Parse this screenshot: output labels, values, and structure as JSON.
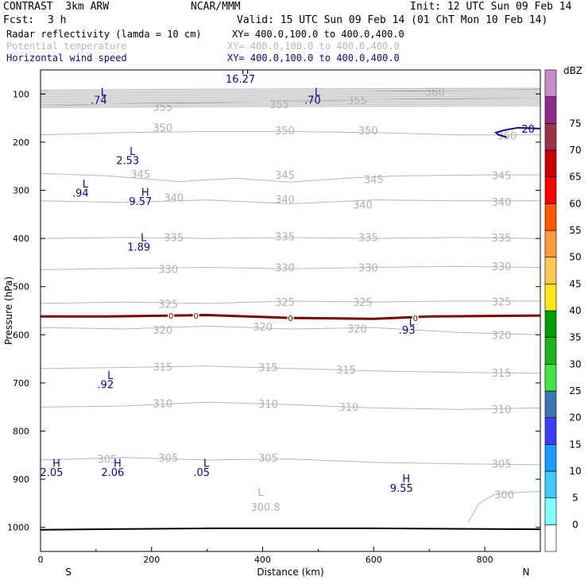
{
  "header": {
    "model": "CONTRAST  3km ARW",
    "org": "NCAR/MMM",
    "init": "Init: 12 UTC Sun 09 Feb 14",
    "fcst_label": "Fcst:",
    "fcst_value": "3 h",
    "valid": "Valid: 15 UTC Sun 09 Feb 14 (01 ChT Mon 10 Feb 14)",
    "fields": [
      {
        "name": "Radar reflectivity (lamda = 10 cm)",
        "xy": "XY= 400.0,100.0 to 400.0,400.0",
        "color": "#000000"
      },
      {
        "name": "Potential temperature",
        "xy": "XY= 400.0,100.0 to 400.0,400.0",
        "color": "#b4b4b4"
      },
      {
        "name": "Horizontal wind speed",
        "xy": "XY= 400.0,100.0 to 400.0,400.0",
        "color": "#0a0a8c"
      }
    ]
  },
  "chart_data": {
    "type": "cross-section contour",
    "title": "Radar reflectivity / Potential temperature / Horizontal wind speed",
    "xlabel": "Distance (km)",
    "ylabel": "Pressure (hPa)",
    "x_range": [
      0,
      900
    ],
    "y_range": [
      1050,
      50
    ],
    "x_ticks": [
      0,
      200,
      400,
      600,
      800
    ],
    "y_ticks": [
      100,
      200,
      300,
      400,
      500,
      600,
      700,
      800,
      900,
      1000
    ],
    "x_end_labels": {
      "left": "S",
      "right": "N"
    },
    "colorbar": {
      "unit": "dBZ",
      "levels": [
        0,
        5,
        10,
        15,
        20,
        25,
        30,
        35,
        40,
        45,
        50,
        55,
        60,
        65,
        70,
        75
      ],
      "colors": [
        "#ffffff",
        "#80ffff",
        "#40c8ff",
        "#1a9bff",
        "#3c3cff",
        "#3c78b4",
        "#40e640",
        "#1eb41e",
        "#00a000",
        "#ffe614",
        "#ffc850",
        "#ff9b3c",
        "#ff5a00",
        "#ff0000",
        "#c80000",
        "#a03246",
        "#8c2d8c",
        "#c88cc8"
      ]
    },
    "theta_contours": [
      {
        "level": 355,
        "pts": [
          [
            0,
            125
          ],
          [
            150,
            120
          ],
          [
            300,
            118
          ],
          [
            450,
            115
          ],
          [
            600,
            112
          ],
          [
            700,
            110
          ],
          [
            900,
            108
          ]
        ],
        "labels": [
          [
            220,
            127
          ],
          [
            430,
            121
          ],
          [
            570,
            113
          ]
        ]
      },
      {
        "level": 360,
        "pts": [
          [
            600,
            95
          ],
          [
            700,
            93
          ],
          [
            900,
            90
          ]
        ],
        "labels": [
          [
            710,
            95
          ]
        ]
      },
      {
        "level": 350,
        "pts": [
          [
            0,
            185
          ],
          [
            150,
            180
          ],
          [
            300,
            178
          ],
          [
            450,
            178
          ],
          [
            600,
            180
          ],
          [
            750,
            185
          ],
          [
            900,
            185
          ]
        ],
        "labels": [
          [
            220,
            170
          ],
          [
            440,
            175
          ],
          [
            590,
            175
          ],
          [
            840,
            186
          ]
        ]
      },
      {
        "level": 345,
        "pts": [
          [
            0,
            265
          ],
          [
            120,
            270
          ],
          [
            250,
            282
          ],
          [
            350,
            275
          ],
          [
            450,
            283
          ],
          [
            550,
            275
          ],
          [
            650,
            270
          ],
          [
            800,
            268
          ],
          [
            900,
            268
          ]
        ],
        "labels": [
          [
            180,
            266
          ],
          [
            440,
            268
          ],
          [
            600,
            277
          ],
          [
            830,
            269
          ]
        ]
      },
      {
        "level": 340,
        "pts": [
          [
            0,
            322
          ],
          [
            150,
            325
          ],
          [
            300,
            320
          ],
          [
            450,
            328
          ],
          [
            600,
            320
          ],
          [
            750,
            322
          ],
          [
            900,
            322
          ]
        ],
        "labels": [
          [
            240,
            315
          ],
          [
            440,
            318
          ],
          [
            580,
            330
          ],
          [
            830,
            324
          ]
        ]
      },
      {
        "level": 335,
        "pts": [
          [
            0,
            400
          ],
          [
            150,
            398
          ],
          [
            300,
            400
          ],
          [
            450,
            398
          ],
          [
            600,
            400
          ],
          [
            750,
            398
          ],
          [
            900,
            400
          ]
        ],
        "labels": [
          [
            240,
            397
          ],
          [
            440,
            396
          ],
          [
            590,
            397
          ],
          [
            830,
            398
          ]
        ]
      },
      {
        "level": 330,
        "pts": [
          [
            0,
            465
          ],
          [
            150,
            462
          ],
          [
            300,
            460
          ],
          [
            450,
            463
          ],
          [
            600,
            460
          ],
          [
            750,
            458
          ],
          [
            900,
            460
          ]
        ],
        "labels": [
          [
            230,
            463
          ],
          [
            440,
            460
          ],
          [
            590,
            460
          ],
          [
            830,
            458
          ]
        ]
      },
      {
        "level": 325,
        "pts": [
          [
            0,
            535
          ],
          [
            150,
            532
          ],
          [
            300,
            535
          ],
          [
            450,
            530
          ],
          [
            600,
            532
          ],
          [
            750,
            530
          ],
          [
            900,
            530
          ]
        ],
        "labels": [
          [
            230,
            536
          ],
          [
            440,
            532
          ],
          [
            580,
            532
          ],
          [
            830,
            531
          ]
        ]
      },
      {
        "level": 320,
        "pts": [
          [
            0,
            585
          ],
          [
            150,
            588
          ],
          [
            300,
            582
          ],
          [
            450,
            588
          ],
          [
            600,
            585
          ],
          [
            750,
            595
          ],
          [
            900,
            600
          ]
        ],
        "labels": [
          [
            220,
            590
          ],
          [
            400,
            583
          ],
          [
            570,
            587
          ],
          [
            830,
            600
          ]
        ]
      },
      {
        "level": 315,
        "pts": [
          [
            0,
            670
          ],
          [
            150,
            668
          ],
          [
            300,
            665
          ],
          [
            450,
            670
          ],
          [
            600,
            675
          ],
          [
            750,
            678
          ],
          [
            900,
            680
          ]
        ],
        "labels": [
          [
            220,
            666
          ],
          [
            410,
            667
          ],
          [
            550,
            672
          ],
          [
            830,
            679
          ]
        ]
      },
      {
        "level": 310,
        "pts": [
          [
            0,
            750
          ],
          [
            150,
            748
          ],
          [
            300,
            740
          ],
          [
            450,
            745
          ],
          [
            600,
            752
          ],
          [
            750,
            755
          ],
          [
            900,
            752
          ]
        ],
        "labels": [
          [
            220,
            742
          ],
          [
            410,
            743
          ],
          [
            555,
            750
          ],
          [
            830,
            755
          ]
        ]
      },
      {
        "level": 305,
        "pts": [
          [
            0,
            860
          ],
          [
            150,
            855
          ],
          [
            300,
            860
          ],
          [
            450,
            858
          ],
          [
            600,
            865
          ],
          [
            750,
            868
          ],
          [
            900,
            870
          ]
        ],
        "labels": [
          [
            120,
            858
          ],
          [
            230,
            855
          ],
          [
            410,
            855
          ],
          [
            830,
            868
          ]
        ]
      },
      {
        "level": 300,
        "pts": [
          [
            770,
            990
          ],
          [
            790,
            950
          ],
          [
            820,
            930
          ],
          [
            900,
            925
          ]
        ],
        "labels": [
          [
            835,
            932
          ]
        ]
      }
    ],
    "theta_texts": [
      [
        405,
        958,
        "300.8"
      ]
    ],
    "wind_markers": [
      {
        "text": "16.27",
        "x": 360,
        "y": 68,
        "letter": "H",
        "letter_y": 50
      },
      {
        "text": ".74",
        "x": 105,
        "y": 112,
        "letter": "L",
        "letter_y": 95
      },
      {
        "text": ".70",
        "x": 490,
        "y": 112,
        "letter": "L",
        "letter_y": 95
      },
      {
        "text": "2.53",
        "x": 157,
        "y": 237,
        "letter": "L",
        "letter_y": 218
      },
      {
        "text": ".94",
        "x": 72,
        "y": 305,
        "letter": "L",
        "letter_y": 286
      },
      {
        "text": "9.57",
        "x": 180,
        "y": 322,
        "letter": "H",
        "letter_y": 303
      },
      {
        "text": "1.89",
        "x": 177,
        "y": 417,
        "letter": "L",
        "letter_y": 397
      },
      {
        "text": ".93",
        "x": 660,
        "y": 590,
        "letter": "L",
        "letter_y": 572
      },
      {
        "text": ".92",
        "x": 117,
        "y": 703,
        "letter": "L",
        "letter_y": 684
      },
      {
        "text": "2.05",
        "x": 20,
        "y": 885,
        "letter": "H",
        "letter_y": 866
      },
      {
        "text": "2.06",
        "x": 130,
        "y": 885,
        "letter": "H",
        "letter_y": 866
      },
      {
        "text": ".05",
        "x": 290,
        "y": 885,
        "letter": "L",
        "letter_y": 866
      },
      {
        "text": "9.55",
        "x": 650,
        "y": 918,
        "letter": "H",
        "letter_y": 898
      }
    ],
    "wind_contour": {
      "level": "20",
      "pts": [
        [
          900,
          172
        ],
        [
          860,
          170
        ],
        [
          835,
          175
        ],
        [
          820,
          180
        ],
        [
          825,
          185
        ],
        [
          840,
          190
        ]
      ],
      "label": [
        878,
        172
      ]
    },
    "freezing_line": {
      "pts": [
        [
          0,
          562
        ],
        [
          120,
          562
        ],
        [
          300,
          559
        ],
        [
          450,
          565
        ],
        [
          600,
          567
        ],
        [
          700,
          562
        ],
        [
          900,
          560
        ]
      ],
      "labels": [
        [
          235,
          560
        ],
        [
          280,
          560
        ],
        [
          450,
          565
        ],
        [
          675,
          565
        ]
      ],
      "label": "0",
      "color": "#7a0000"
    }
  }
}
